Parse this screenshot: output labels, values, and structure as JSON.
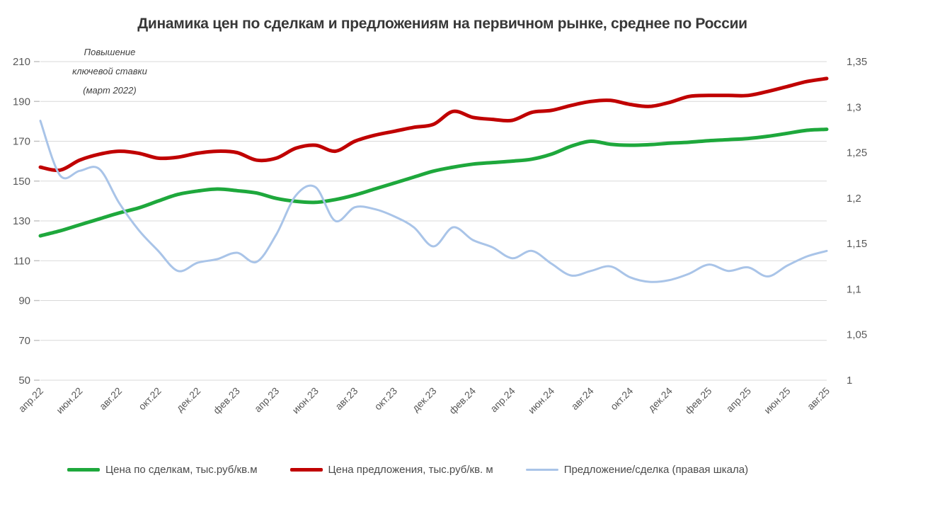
{
  "chart_data": {
    "type": "line",
    "title": "Динамика цен по сделкам и предложениям на первичном рынке, среднее по России",
    "annotation_lines": [
      "Повышение",
      "ключевой ставки",
      "(март 2022)"
    ],
    "grid": "horizontal",
    "legend_position": "bottom",
    "x": [
      "апр.22",
      "май.22",
      "июн.22",
      "июл.22",
      "авг.22",
      "сен.22",
      "окт.22",
      "ноя.22",
      "дек.22",
      "янв.23",
      "фев.23",
      "мар.23",
      "апр.23",
      "май.23",
      "июн.23",
      "июл.23",
      "авг.23",
      "сен.23",
      "окт.23",
      "ноя.23",
      "дек.23",
      "янв.24",
      "фев.24",
      "мар.24",
      "апр.24",
      "май.24",
      "июн.24",
      "июл.24",
      "авг.24",
      "сен.24",
      "окт.24",
      "ноя.24",
      "дек.24",
      "янв.25",
      "фев.25",
      "мар.25",
      "апр.25",
      "май.25",
      "июн.25",
      "июл.25",
      "авг.25"
    ],
    "x_tick_labels": [
      "апр.22",
      "июн.22",
      "авг.22",
      "окт.22",
      "дек.22",
      "фев.23",
      "апр.23",
      "июн.23",
      "авг.23",
      "окт.23",
      "дек.23",
      "фев.24",
      "апр.24",
      "июн.24",
      "авг.24",
      "окт.24",
      "дек.24",
      "фев.25",
      "апр.25",
      "июн.25",
      "авг.25"
    ],
    "left_axis": {
      "range": [
        50,
        210
      ],
      "tick_labels": [
        "210",
        "190",
        "170",
        "150",
        "130",
        "110",
        "90",
        "70",
        "50"
      ]
    },
    "right_axis": {
      "range": [
        1,
        1.35
      ],
      "tick_labels": [
        "1,35",
        "1,3",
        "1,25",
        "1,2",
        "1,15",
        "1,1",
        "1,05",
        "1"
      ]
    },
    "series": [
      {
        "name": "Цена по сделкам, тыс.руб/кв.м",
        "color": "#1ea83c",
        "axis": "left",
        "width": 5,
        "values": [
          122.5,
          125,
          128,
          131,
          134,
          136.5,
          140,
          143.3,
          145,
          146,
          145.2,
          144,
          141.3,
          139.8,
          139.3,
          140.7,
          143,
          146,
          149,
          152,
          155,
          157,
          158.5,
          159.3,
          160,
          161,
          163.5,
          167.5,
          170,
          168.5,
          168,
          168.3,
          169,
          169.5,
          170.3,
          170.8,
          171.4,
          172.5,
          174,
          175.5,
          176
        ]
      },
      {
        "name": "Цена предложения, тыс.руб/кв. м",
        "color": "#c00000",
        "axis": "left",
        "width": 5,
        "values": [
          157,
          155.5,
          160.5,
          163.5,
          165,
          164,
          161.5,
          162,
          164,
          165,
          164.3,
          160.5,
          161.5,
          166.5,
          168,
          165,
          170,
          173,
          175,
          177,
          178.5,
          185,
          182,
          181,
          180.5,
          184.5,
          185.5,
          188,
          190,
          190.5,
          188.5,
          187.5,
          189.5,
          192.5,
          193,
          193,
          193,
          195,
          197.5,
          200,
          201.5
        ]
      },
      {
        "name": "Предложение/сделка (правая шкала)",
        "color": "#a9c4e8",
        "axis": "right",
        "width": 3,
        "values": [
          1.285,
          1.225,
          1.23,
          1.232,
          1.195,
          1.165,
          1.142,
          1.12,
          1.129,
          1.133,
          1.14,
          1.13,
          1.16,
          1.203,
          1.212,
          1.175,
          1.19,
          1.188,
          1.18,
          1.168,
          1.147,
          1.168,
          1.154,
          1.146,
          1.134,
          1.142,
          1.128,
          1.115,
          1.12,
          1.125,
          1.113,
          1.108,
          1.11,
          1.117,
          1.127,
          1.12,
          1.124,
          1.114,
          1.126,
          1.136,
          1.142
        ]
      }
    ],
    "colors": {
      "gridline": "#d9d9d9",
      "tick_text": "#595959",
      "title_text": "#383838"
    }
  }
}
